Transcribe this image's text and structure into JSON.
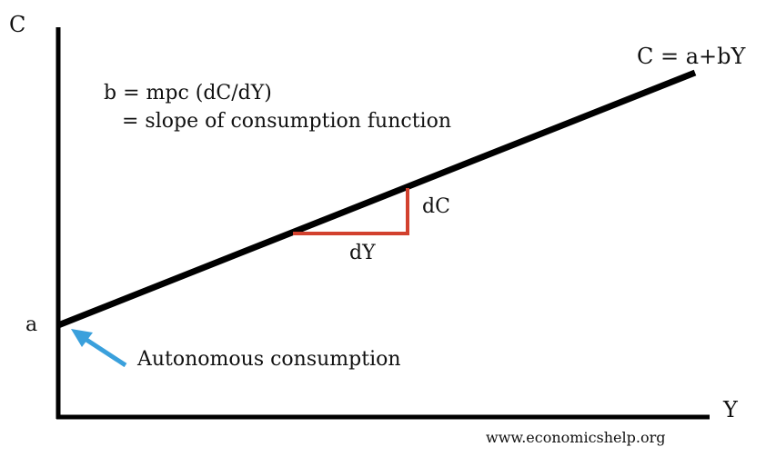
{
  "axes": {
    "y_label": "C",
    "x_label": "Y",
    "intercept_label": "a"
  },
  "line_label": "C = a+bY",
  "annotation": {
    "line1": "b = mpc (dC/dY)",
    "line2": "= slope of consumption function"
  },
  "slope_triangle": {
    "run_label": "dY",
    "rise_label": "dC"
  },
  "autonomous_label": "Autonomous consumption",
  "watermark": "www.economicshelp.org",
  "colors": {
    "line": "#000000",
    "triangle": "#d2412e",
    "arrow": "#3aa0dc"
  }
}
